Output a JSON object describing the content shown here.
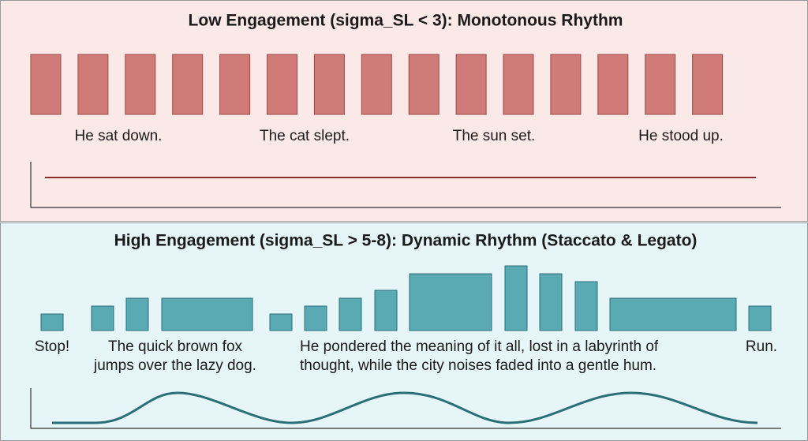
{
  "panels": [
    {
      "title": "Low Engagement (sigma_SL < 3): Monotonous Rhythm",
      "labels": [
        {
          "lines": [
            "He sat down."
          ]
        },
        {
          "lines": [
            "The cat slept."
          ]
        },
        {
          "lines": [
            "The sun set."
          ]
        },
        {
          "lines": [
            "He stood up."
          ]
        }
      ]
    },
    {
      "title": "High Engagement (sigma_SL > 5-8): Dynamic Rhythm (Staccato & Legato)",
      "labels": [
        {
          "lines": [
            "Stop!"
          ]
        },
        {
          "lines": [
            "The quick brown fox",
            "jumps over the lazy dog."
          ]
        },
        {
          "lines": [
            "He pondered the meaning of it all, lost in a labyrinth of",
            "thought, while the city noises faded into a gentle hum."
          ]
        },
        {
          "lines": [
            "Run."
          ]
        }
      ]
    }
  ]
}
